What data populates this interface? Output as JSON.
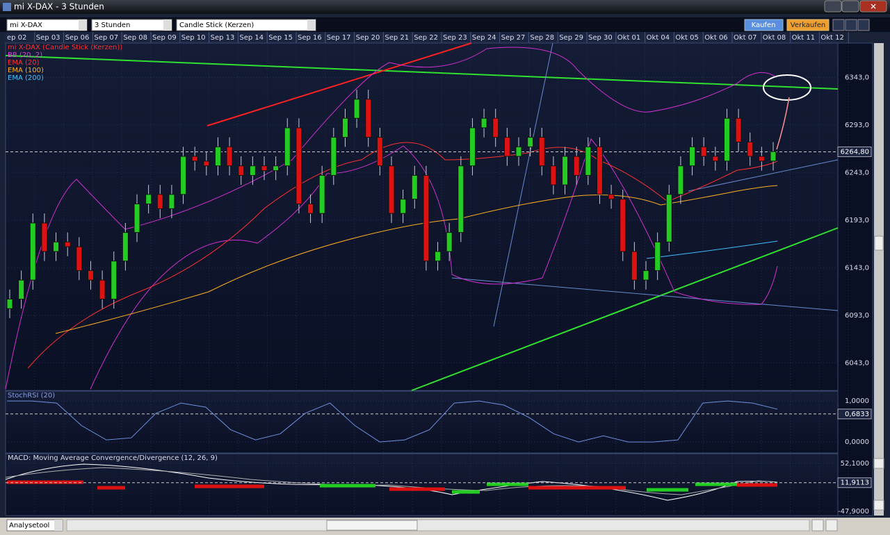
{
  "window": {
    "title": "mi X-DAX - 3 Stunden"
  },
  "toolbar": {
    "instrument": "mi X-DAX",
    "interval": "3 Stunden",
    "chart_type": "Candle Stick (Kerzen)",
    "buy": "Kaufen",
    "sell": "Verkaufen"
  },
  "dates": [
    "ep 02",
    "Sep 03",
    "Sep 06",
    "Sep 07",
    "Sep 08",
    "Sep 09",
    "Sep 10",
    "Sep 13",
    "Sep 14",
    "Sep 15",
    "Sep 16",
    "Sep 17",
    "Sep 20",
    "Sep 21",
    "Sep 22",
    "Sep 23",
    "Sep 24",
    "Sep 27",
    "Sep 28",
    "Sep 29",
    "Sep 30",
    "Okt 01",
    "Okt 04",
    "Okt 05",
    "Okt 06",
    "Okt 07",
    "Okt 08",
    "Okt 11",
    "Okt 12"
  ],
  "main": {
    "legend": [
      {
        "name": "mi X-DAX (Candle Stick (Kerzen))",
        "color": "#ff3030"
      },
      {
        "name": "BB (20, 2)",
        "color": "#e040e0"
      },
      {
        "name": "EMA (20)",
        "color": "#ff3030"
      },
      {
        "name": "EMA (100)",
        "color": "#ffb020"
      },
      {
        "name": "EMA (200)",
        "color": "#40c0ff"
      }
    ],
    "up_color": "#22cc22",
    "down_color": "#dd1111",
    "open": [
      6100,
      6110,
      6130,
      6190,
      6160,
      6170,
      6165,
      6140,
      6130,
      6110,
      6150,
      6180,
      6210,
      6220,
      6205,
      6220,
      6260,
      6255,
      6250,
      6270,
      6250,
      6240,
      6250,
      6245,
      6250,
      6290,
      6210,
      6200,
      6240,
      6280,
      6300,
      6320,
      6280,
      6250,
      6200,
      6215,
      6240,
      6150,
      6160,
      6180,
      6250,
      6290,
      6300,
      6280,
      6260,
      6270,
      6280,
      6250,
      6230,
      6260,
      6240,
      6270,
      6220,
      6215,
      6160,
      6130,
      6140,
      6170,
      6220,
      6250,
      6270,
      6260,
      6255,
      6300,
      6275,
      6260,
      6255
    ],
    "high": [
      6120,
      6140,
      6200,
      6200,
      6180,
      6180,
      6175,
      6150,
      6140,
      6160,
      6190,
      6220,
      6230,
      6230,
      6230,
      6270,
      6270,
      6265,
      6280,
      6280,
      6260,
      6260,
      6260,
      6260,
      6300,
      6300,
      6220,
      6250,
      6290,
      6310,
      6330,
      6330,
      6290,
      6260,
      6225,
      6250,
      6250,
      6170,
      6190,
      6260,
      6300,
      6310,
      6310,
      6290,
      6280,
      6290,
      6290,
      6260,
      6270,
      6270,
      6280,
      6280,
      6230,
      6225,
      6170,
      6150,
      6180,
      6230,
      6260,
      6280,
      6280,
      6270,
      6310,
      6310,
      6285,
      6270,
      6275
    ],
    "low": [
      6090,
      6100,
      6120,
      6150,
      6150,
      6155,
      6130,
      6120,
      6100,
      6100,
      6140,
      6170,
      6200,
      6195,
      6195,
      6210,
      6245,
      6240,
      6240,
      6240,
      6230,
      6230,
      6235,
      6235,
      6240,
      6200,
      6190,
      6190,
      6230,
      6270,
      6290,
      6270,
      6240,
      6190,
      6190,
      6205,
      6140,
      6140,
      6150,
      6170,
      6240,
      6280,
      6270,
      6250,
      6250,
      6260,
      6240,
      6220,
      6220,
      6230,
      6230,
      6210,
      6205,
      6150,
      6120,
      6120,
      6130,
      6160,
      6210,
      6240,
      6250,
      6245,
      6245,
      6265,
      6250,
      6245,
      6245
    ],
    "close": [
      6110,
      6130,
      6190,
      6160,
      6170,
      6165,
      6140,
      6130,
      6110,
      6150,
      6180,
      6210,
      6220,
      6205,
      6220,
      6260,
      6255,
      6250,
      6270,
      6250,
      6240,
      6250,
      6245,
      6250,
      6290,
      6210,
      6200,
      6240,
      6280,
      6300,
      6320,
      6280,
      6250,
      6200,
      6215,
      6240,
      6150,
      6160,
      6180,
      6250,
      6290,
      6300,
      6280,
      6260,
      6270,
      6280,
      6250,
      6230,
      6260,
      6240,
      6270,
      6220,
      6215,
      6160,
      6130,
      6140,
      6170,
      6220,
      6250,
      6270,
      6260,
      6255,
      6300,
      6275,
      6260,
      6255,
      6265
    ],
    "ylim": [
      6014,
      6379
    ],
    "yticks": [
      {
        "value": 6343,
        "label": "6343,0"
      },
      {
        "value": 6293,
        "label": "6293,0"
      },
      {
        "value": 6243,
        "label": "6243,0"
      },
      {
        "value": 6193,
        "label": "6193,0"
      },
      {
        "value": 6143,
        "label": "6143,0"
      },
      {
        "value": 6093,
        "label": "6093,0"
      },
      {
        "value": 6043,
        "label": "6043,0"
      }
    ],
    "last": {
      "value": 6264.8,
      "label": "6264,80"
    }
  },
  "stoch": {
    "label": "StochRSI (20)",
    "color": "#7090e0",
    "values": [
      1,
      1,
      0.95,
      0.4,
      0.05,
      0.1,
      0.7,
      0.95,
      0.85,
      0.3,
      0.05,
      0.2,
      0.7,
      0.95,
      0.4,
      0.0,
      0.05,
      0.3,
      0.95,
      1,
      0.9,
      0.6,
      0.2,
      0.0,
      0.15,
      0.0,
      0.0,
      0.05,
      0.95,
      1,
      0.95,
      0.8
    ],
    "ylim": [
      -0.27,
      1.24
    ],
    "yticks": [
      {
        "value": 1,
        "label": "1,0000"
      },
      {
        "value": 0,
        "label": "0,0000"
      }
    ],
    "last": {
      "value": 0.6833,
      "label": "0,6833"
    }
  },
  "macd": {
    "label": "MACD: Moving Average Convergence/Divergence (12, 26, 9)",
    "ylim": [
      -56.6,
      72.4
    ],
    "yticks": [
      {
        "value": 52.1,
        "label": "52,1000"
      },
      {
        "value": -47.9,
        "label": "-47,9000"
      }
    ],
    "last": {
      "value": 11.9113,
      "label": "11,9113"
    }
  },
  "footer": {
    "tool": "Analysetool"
  }
}
